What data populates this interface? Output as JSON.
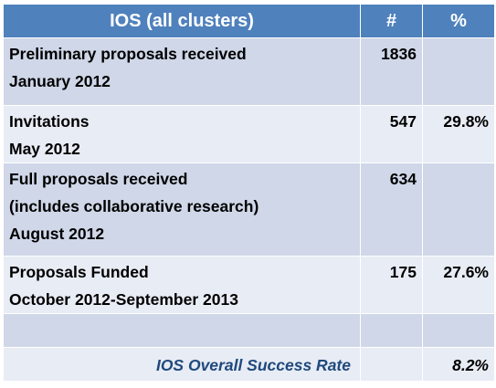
{
  "table": {
    "headers": [
      "IOS (all clusters)",
      "#",
      "%"
    ],
    "rows": [
      {
        "label_lines": [
          "Preliminary proposals received",
          "January 2012"
        ],
        "count": "1836",
        "percent": ""
      },
      {
        "label_lines": [
          "Invitations",
          "May 2012"
        ],
        "count": "547",
        "percent": "29.8%"
      },
      {
        "label_lines": [
          "Full proposals received",
          "(includes collaborative research)",
          "August 2012"
        ],
        "count": "634",
        "percent": ""
      },
      {
        "label_lines": [
          "Proposals Funded",
          "October 2012-September 2013"
        ],
        "count": "175",
        "percent": "27.6%"
      }
    ],
    "summary": {
      "label": "IOS Overall Success Rate",
      "count": "",
      "percent": "8.2%"
    }
  },
  "colors": {
    "header_bg": "#4f81bd",
    "row_dark": "#cfd7e8",
    "row_light": "#e8ecf5",
    "summary_text": "#1f497d"
  }
}
